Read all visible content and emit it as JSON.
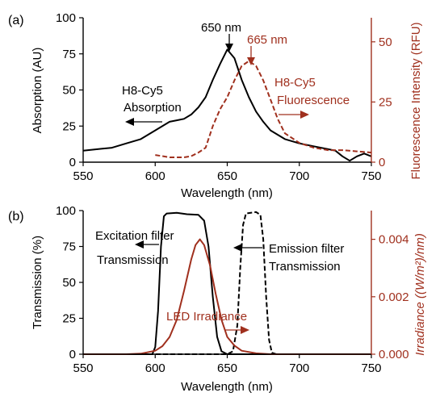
{
  "chart_data": [
    {
      "panel_label": "(a)",
      "type": "line",
      "xlabel": "Wavelength (nm)",
      "ylabel": "Absorption (AU)",
      "y2label": "Fluorescence Intensity (RFU)",
      "xlim": [
        550,
        750
      ],
      "ylim": [
        0,
        100
      ],
      "y2lim": [
        0,
        60
      ],
      "xticks": [
        "550",
        "600",
        "650",
        "700",
        "750"
      ],
      "yticks": [
        "0",
        "25",
        "50",
        "75",
        "100"
      ],
      "y2ticks": [
        "0",
        "25",
        "50"
      ],
      "colors": {
        "absorption": "#000000",
        "fluorescence": "#a0301e"
      },
      "series": [
        {
          "axis": "left",
          "style": "solid",
          "points": [
            [
              550,
              8
            ],
            [
              560,
              9
            ],
            [
              570,
              10
            ],
            [
              580,
              13
            ],
            [
              590,
              16
            ],
            [
              600,
              22
            ],
            [
              610,
              28
            ],
            [
              615,
              29
            ],
            [
              620,
              30
            ],
            [
              625,
              33
            ],
            [
              630,
              38
            ],
            [
              635,
              45
            ],
            [
              640,
              57
            ],
            [
              645,
              68
            ],
            [
              650,
              78
            ],
            [
              655,
              72
            ],
            [
              660,
              57
            ],
            [
              665,
              45
            ],
            [
              670,
              35
            ],
            [
              675,
              28
            ],
            [
              680,
              22
            ],
            [
              690,
              16
            ],
            [
              700,
              13
            ],
            [
              710,
              11
            ],
            [
              720,
              9
            ],
            [
              725,
              8
            ],
            [
              730,
              4
            ],
            [
              735,
              1
            ],
            [
              740,
              4
            ],
            [
              745,
              6
            ],
            [
              750,
              4
            ]
          ]
        },
        {
          "axis": "right",
          "style": "dashed",
          "points": [
            [
              600,
              3
            ],
            [
              610,
              2
            ],
            [
              620,
              2
            ],
            [
              625,
              2.5
            ],
            [
              630,
              4
            ],
            [
              635,
              6
            ],
            [
              640,
              15
            ],
            [
              645,
              22
            ],
            [
              650,
              27
            ],
            [
              655,
              34
            ],
            [
              660,
              40
            ],
            [
              665,
              42
            ],
            [
              670,
              40
            ],
            [
              675,
              34
            ],
            [
              680,
              26
            ],
            [
              685,
              18
            ],
            [
              690,
              12
            ],
            [
              700,
              8
            ],
            [
              710,
              6
            ],
            [
              720,
              5
            ],
            [
              730,
              5
            ],
            [
              740,
              4.5
            ],
            [
              750,
              4
            ]
          ]
        }
      ],
      "annotations": {
        "peak_abs": "650 nm",
        "peak_fluo": "665 nm",
        "abs_label_1": "H8-Cy5",
        "abs_label_2": "Absorption",
        "fluo_label_1": "H8-Cy5",
        "fluo_label_2": "Fluorescence"
      }
    },
    {
      "panel_label": "(b)",
      "type": "line",
      "xlabel": "Wavelength (nm)",
      "ylabel": "Transmission (%)",
      "y2label": "Irradiance ((W/m²)/nm)",
      "xlim": [
        550,
        750
      ],
      "ylim": [
        0,
        100
      ],
      "y2lim": [
        0,
        0.005
      ],
      "xticks": [
        "550",
        "600",
        "650",
        "700",
        "750"
      ],
      "yticks": [
        "0",
        "25",
        "50",
        "75",
        "100"
      ],
      "y2ticks": [
        "0.000",
        "0.002",
        "0.004"
      ],
      "colors": {
        "filters": "#000000",
        "led": "#a0301e"
      },
      "series": [
        {
          "axis": "left",
          "style": "solid",
          "points": [
            [
              550,
              0
            ],
            [
              598,
              0
            ],
            [
              600,
              5
            ],
            [
              602,
              30
            ],
            [
              604,
              75
            ],
            [
              606,
              96
            ],
            [
              608,
              98
            ],
            [
              615,
              98.5
            ],
            [
              622,
              97.5
            ],
            [
              630,
              97
            ],
            [
              634,
              93
            ],
            [
              637,
              75
            ],
            [
              640,
              40
            ],
            [
              643,
              12
            ],
            [
              646,
              2
            ],
            [
              650,
              0
            ],
            [
              750,
              0
            ]
          ]
        },
        {
          "axis": "left",
          "style": "dashed",
          "points": [
            [
              550,
              0
            ],
            [
              650,
              0
            ],
            [
              654,
              2
            ],
            [
              657,
              20
            ],
            [
              659,
              60
            ],
            [
              661,
              90
            ],
            [
              663,
              98
            ],
            [
              670,
              99
            ],
            [
              673,
              97
            ],
            [
              675,
              80
            ],
            [
              677,
              40
            ],
            [
              679,
              10
            ],
            [
              681,
              1
            ],
            [
              684,
              0
            ],
            [
              750,
              0
            ]
          ]
        },
        {
          "axis": "right",
          "style": "solid",
          "points": [
            [
              550,
              0
            ],
            [
              580,
              0
            ],
            [
              590,
              2e-05
            ],
            [
              600,
              0.00012
            ],
            [
              605,
              0.00028
            ],
            [
              610,
              0.0006
            ],
            [
              615,
              0.0012
            ],
            [
              620,
              0.0022
            ],
            [
              625,
              0.0033
            ],
            [
              628,
              0.0038
            ],
            [
              631,
              0.004
            ],
            [
              634,
              0.0038
            ],
            [
              638,
              0.0031
            ],
            [
              642,
              0.0021
            ],
            [
              646,
              0.0012
            ],
            [
              650,
              0.0006
            ],
            [
              655,
              0.0003
            ],
            [
              660,
              0.00012
            ],
            [
              670,
              3e-05
            ],
            [
              680,
              0
            ],
            [
              750,
              0
            ]
          ]
        }
      ],
      "annotations": {
        "exc_label_1": "Excitation filter",
        "exc_label_2": "Transmission",
        "emi_label_1": "Emission filter",
        "emi_label_2": "Transmission",
        "led_label": "LED Irradiance"
      }
    }
  ]
}
